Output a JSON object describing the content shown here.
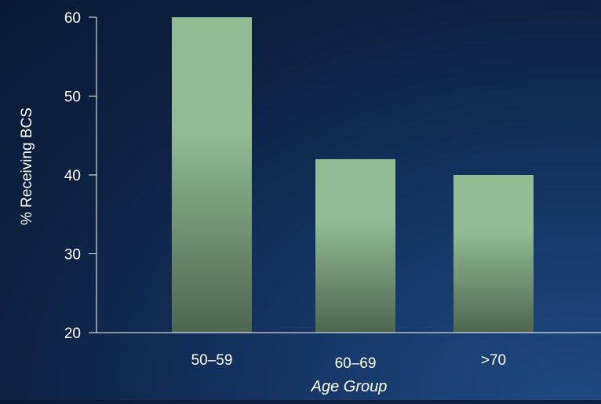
{
  "chart_data": {
    "type": "bar",
    "categories": [
      "50–59",
      "60–69",
      ">70"
    ],
    "values": [
      60,
      42,
      40
    ],
    "xlabel": "Age Group",
    "ylabel": "% Receiving BCS",
    "ylim": [
      20,
      60
    ],
    "yticks": [
      20,
      30,
      40,
      50,
      60
    ],
    "grid": false,
    "legend": "none",
    "colors": {
      "bar_top": "#93bc94",
      "bar_bottom": "#4d6650",
      "axis": "#ffffff",
      "text": "#ffffff"
    }
  }
}
